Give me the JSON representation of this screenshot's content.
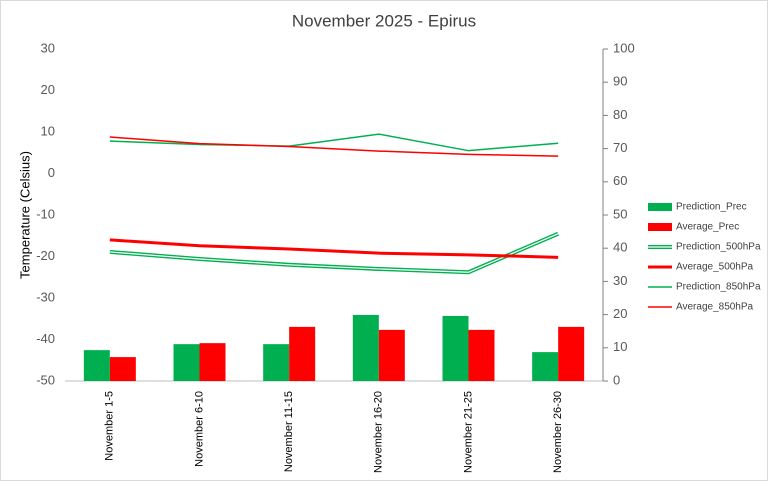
{
  "chart_data": {
    "type": "combo",
    "title": "November 2025 - Epirus",
    "y_label": "Temperature (Celsius)",
    "categories": [
      "November 1-5",
      "November 6-10",
      "November 11-15",
      "November 16-20",
      "November 21-25",
      "November 26-30"
    ],
    "ylim": [
      -50,
      30
    ],
    "yticks": [
      -50,
      -40,
      -30,
      -20,
      -10,
      0,
      10,
      20,
      30
    ],
    "y2lim": [
      0,
      100
    ],
    "y2ticks": [
      0,
      10,
      20,
      30,
      40,
      50,
      60,
      70,
      80,
      90,
      100
    ],
    "grid": false,
    "legend": "right",
    "series": [
      {
        "name": "Prediction_Prec",
        "type": "bar",
        "axis": "y2",
        "color": "#00b050",
        "values": [
          9.3,
          11.1,
          11.1,
          19.9,
          19.6,
          8.7
        ]
      },
      {
        "name": "Average_Prec",
        "type": "bar",
        "axis": "y2",
        "color": "#ff0000",
        "values": [
          7.2,
          11.4,
          16.3,
          15.4,
          15.4,
          16.3
        ]
      },
      {
        "name": "Prediction_500hPa",
        "type": "line",
        "style": "double",
        "color": "#00b050",
        "values": [
          -18.9,
          -20.6,
          -22.0,
          -23.0,
          -23.8,
          -14.5
        ]
      },
      {
        "name": "Average_500hPa",
        "type": "line",
        "style": "thick",
        "color": "#ff0000",
        "values": [
          -16.0,
          -17.4,
          -18.2,
          -19.2,
          -19.6,
          -20.2
        ]
      },
      {
        "name": "Prediction_850hPa",
        "type": "line",
        "style": "thin",
        "color": "#00b050",
        "values": [
          7.8,
          7.0,
          6.6,
          9.5,
          5.5,
          7.3
        ]
      },
      {
        "name": "Average_850hPa",
        "type": "line",
        "style": "thin",
        "color": "#ff0000",
        "values": [
          8.8,
          7.2,
          6.5,
          5.4,
          4.6,
          4.2
        ]
      }
    ]
  }
}
